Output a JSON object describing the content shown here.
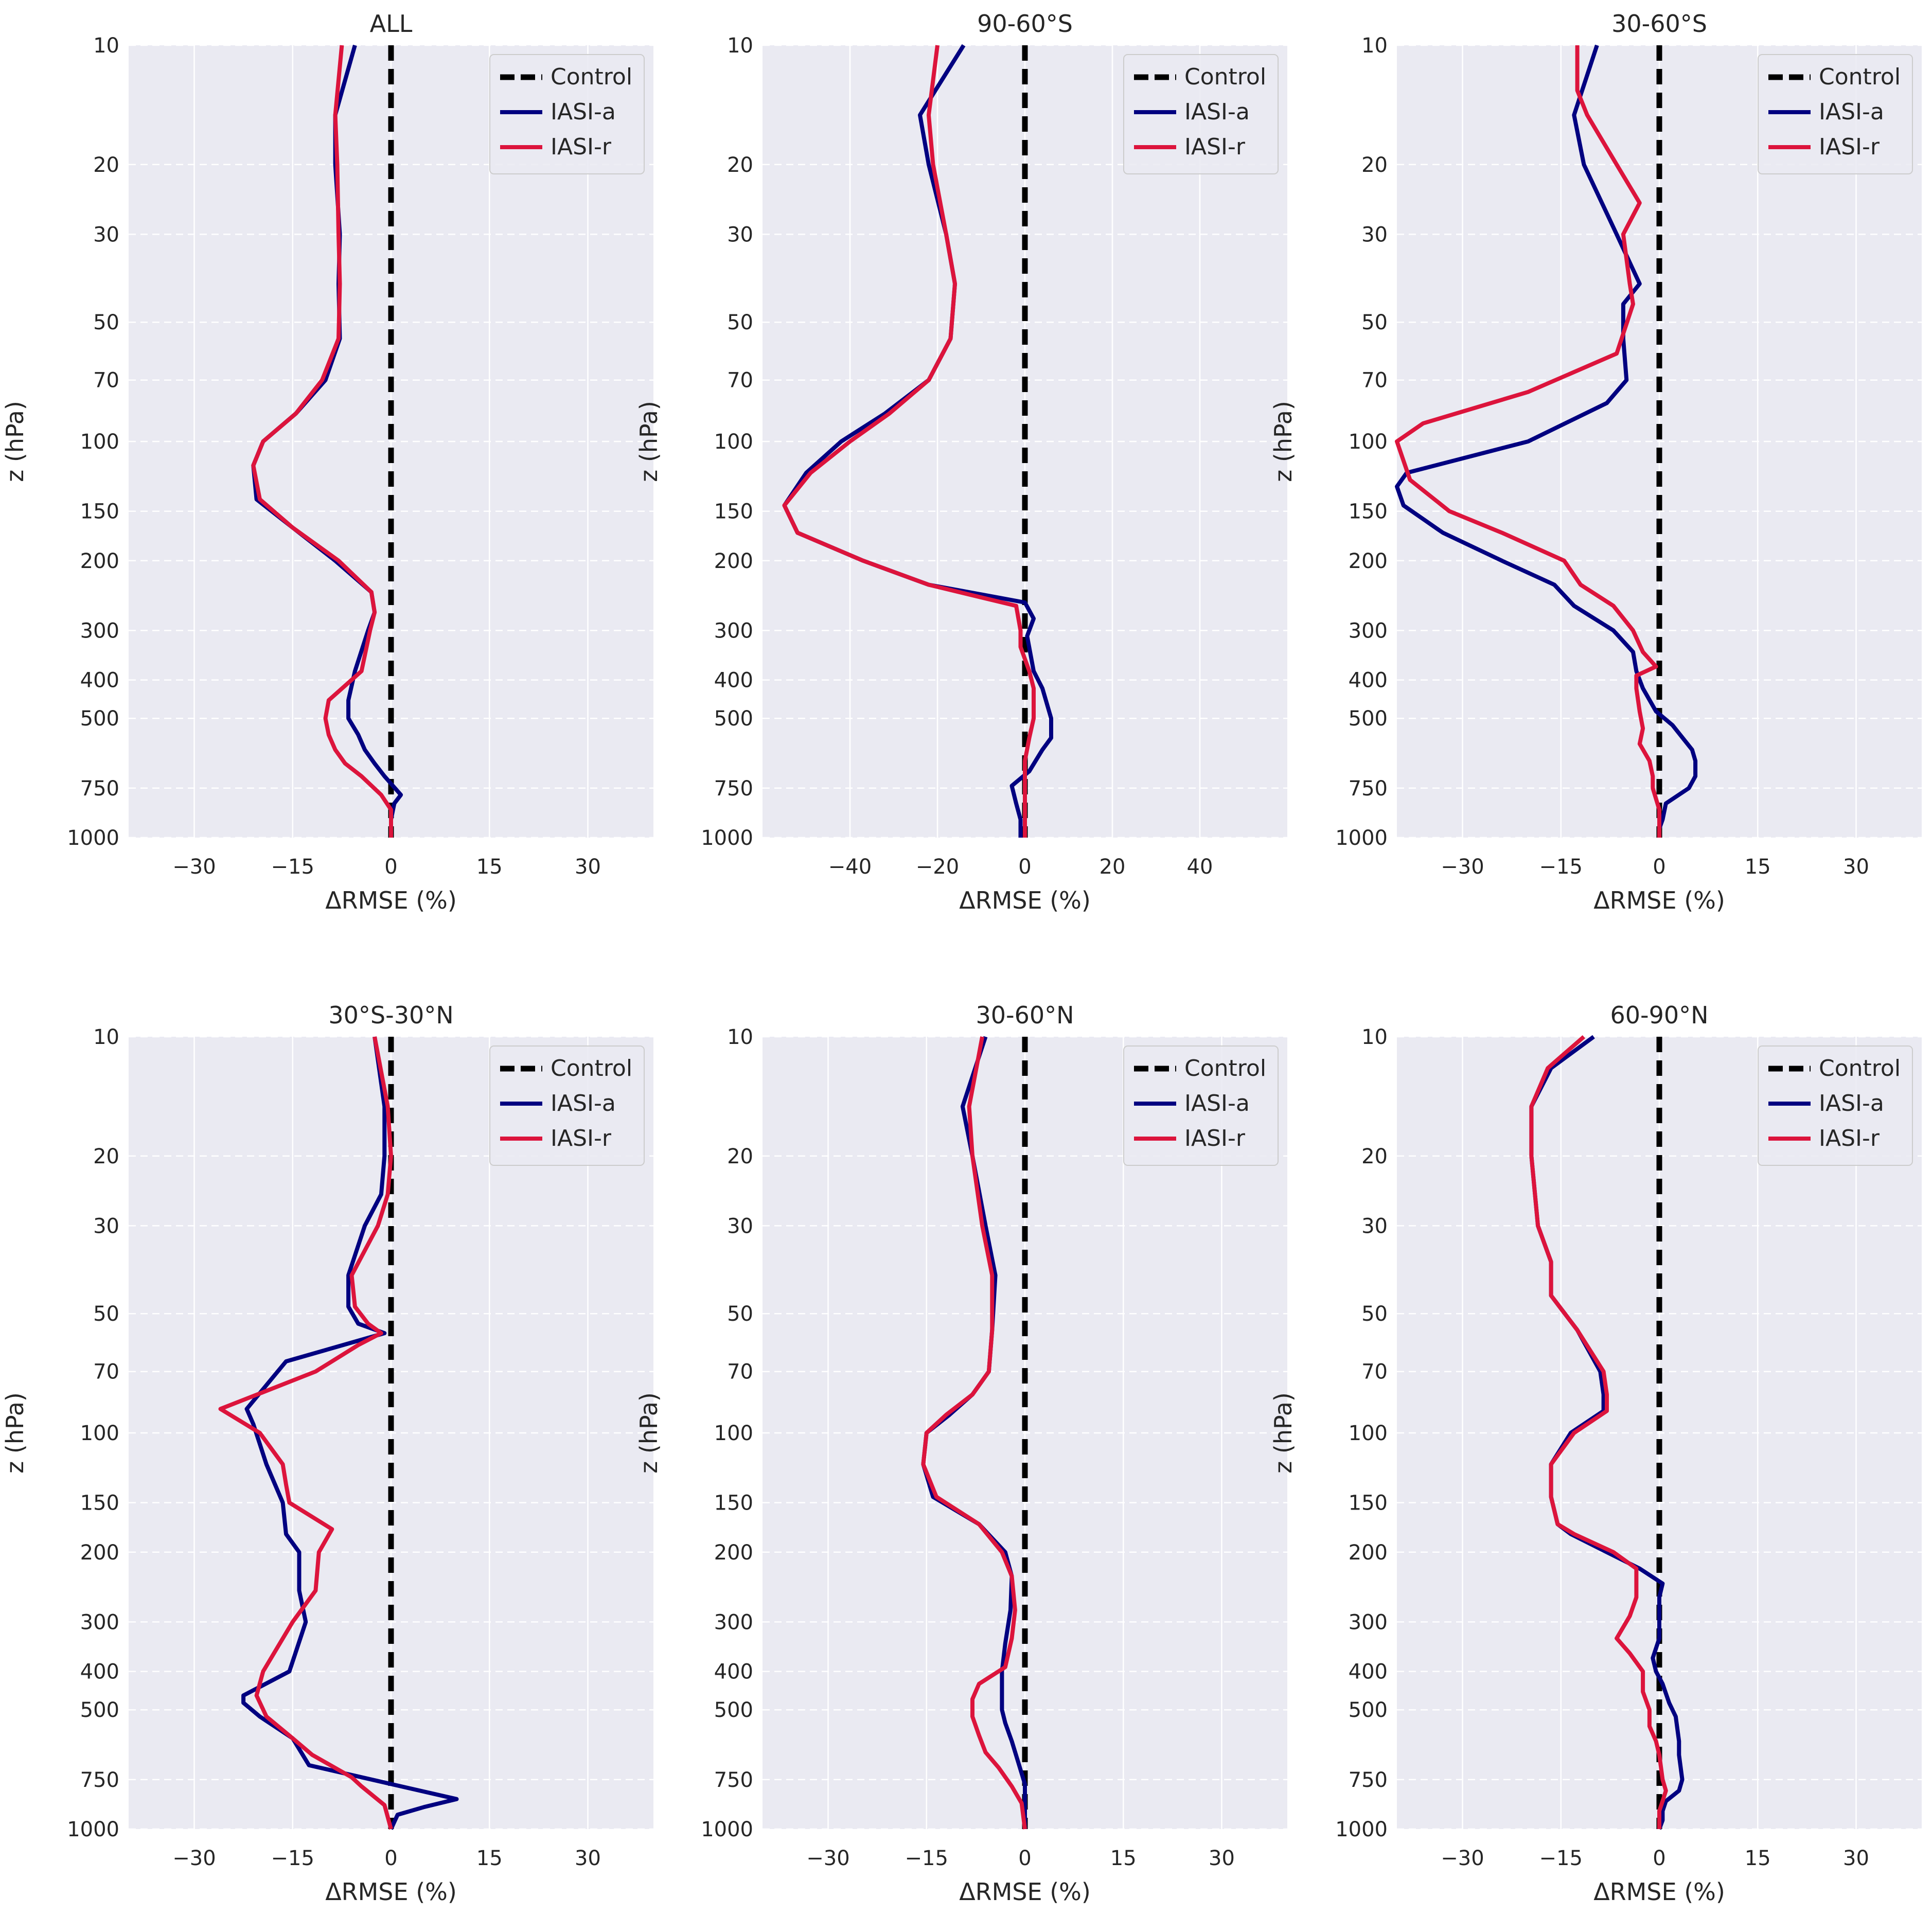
{
  "figure": {
    "colors": {
      "panel_bg": "#EAEAF2",
      "grid": "#FFFFFF",
      "control": "#000000",
      "iasi_a": "#000080",
      "iasi_r": "#DC143C",
      "legend_border": "#CCCCCC"
    }
  },
  "chart_data": [
    {
      "type": "line",
      "title": "ALL",
      "xlabel": "ΔRMSE (%)",
      "ylabel": "z (hPa)",
      "yscale": "log",
      "yinvert": true,
      "xlim": [
        -40,
        40
      ],
      "ylim": [
        10,
        1000
      ],
      "xticks": [
        -30,
        -15,
        0,
        15,
        30
      ],
      "yticks": [
        10,
        20,
        30,
        50,
        70,
        100,
        150,
        200,
        300,
        400,
        500,
        750,
        1000
      ],
      "legend_position": "top-right",
      "grid": true,
      "series": [
        {
          "name": "Control",
          "style": "dashed",
          "x": [
            0,
            0
          ],
          "y": [
            10,
            1000
          ]
        },
        {
          "name": "IASI-a",
          "style": "solid",
          "x": [
            -5.5,
            -8.5,
            -8.5,
            -7.8,
            -8,
            -7.8,
            -10,
            -14.5,
            -19.5,
            -21,
            -20.5,
            -15,
            -8.5,
            -3,
            -2.5,
            -3.5,
            -5.5,
            -6.5,
            -6.5,
            -5,
            -4,
            -2.5,
            -1,
            1.5,
            0.5,
            0,
            0
          ],
          "y": [
            10,
            15,
            20,
            30,
            40,
            55,
            70,
            85,
            100,
            115,
            140,
            165,
            200,
            240,
            270,
            300,
            380,
            450,
            500,
            550,
            600,
            650,
            700,
            780,
            820,
            900,
            1000
          ]
        },
        {
          "name": "IASI-r",
          "style": "solid",
          "x": [
            -7.5,
            -8.5,
            -8.2,
            -8,
            -7.8,
            -8,
            -10.5,
            -14.5,
            -19.5,
            -21,
            -20,
            -15,
            -8,
            -3,
            -2.5,
            -3.2,
            -4.5,
            -9.5,
            -10,
            -9.5,
            -8.5,
            -7,
            -4.5,
            -1.5,
            0,
            0
          ],
          "y": [
            10,
            15,
            20,
            30,
            40,
            55,
            70,
            85,
            100,
            115,
            140,
            165,
            200,
            240,
            270,
            300,
            380,
            450,
            500,
            550,
            600,
            650,
            700,
            780,
            850,
            1000
          ]
        }
      ]
    },
    {
      "type": "line",
      "title": "90-60°S",
      "xlabel": "ΔRMSE (%)",
      "ylabel": "z (hPa)",
      "yscale": "log",
      "yinvert": true,
      "xlim": [
        -60,
        60
      ],
      "ylim": [
        10,
        1000
      ],
      "xticks": [
        -40,
        -20,
        0,
        20,
        40
      ],
      "yticks": [
        10,
        20,
        30,
        50,
        70,
        100,
        150,
        200,
        300,
        400,
        500,
        750,
        1000
      ],
      "legend_position": "top-right",
      "grid": true,
      "series": [
        {
          "name": "Control",
          "style": "dashed",
          "x": [
            0,
            0
          ],
          "y": [
            10,
            1000
          ]
        },
        {
          "name": "IASI-a",
          "style": "solid",
          "x": [
            -14,
            -24,
            -22,
            -18,
            -16,
            -17,
            -22,
            -32,
            -42,
            -50,
            -55,
            -52,
            -37,
            -22,
            0,
            2,
            0.5,
            2,
            4,
            6,
            6,
            4,
            1,
            -3,
            -2,
            -1,
            -1
          ],
          "y": [
            10,
            15,
            20,
            30,
            40,
            55,
            70,
            85,
            100,
            120,
            145,
            170,
            200,
            230,
            255,
            280,
            310,
            380,
            420,
            500,
            560,
            600,
            680,
            740,
            820,
            900,
            1000
          ]
        },
        {
          "name": "IASI-r",
          "style": "solid",
          "x": [
            -20,
            -22,
            -21,
            -18,
            -16,
            -17,
            -22,
            -31,
            -40,
            -49,
            -55,
            -52,
            -37,
            -22,
            -2,
            -1,
            -1,
            1,
            2,
            2,
            1,
            0,
            0,
            0,
            0
          ],
          "y": [
            10,
            15,
            20,
            30,
            40,
            55,
            70,
            85,
            100,
            120,
            145,
            170,
            200,
            230,
            260,
            300,
            330,
            380,
            420,
            500,
            560,
            640,
            750,
            850,
            1000
          ]
        }
      ]
    },
    {
      "type": "line",
      "title": "30-60°S",
      "xlabel": "ΔRMSE (%)",
      "ylabel": "z (hPa)",
      "yscale": "log",
      "yinvert": true,
      "xlim": [
        -40,
        40
      ],
      "ylim": [
        10,
        1000
      ],
      "xticks": [
        -30,
        -15,
        0,
        15,
        30
      ],
      "yticks": [
        10,
        20,
        30,
        50,
        70,
        100,
        150,
        200,
        300,
        400,
        500,
        750,
        1000
      ],
      "legend_position": "top-right",
      "grid": true,
      "series": [
        {
          "name": "Control",
          "style": "dashed",
          "x": [
            0,
            0
          ],
          "y": [
            10,
            1000
          ]
        },
        {
          "name": "IASI-a",
          "style": "solid",
          "x": [
            -9.5,
            -13,
            -11.5,
            -6.5,
            -3,
            -5.5,
            -5.5,
            -5,
            -8,
            -20,
            -38.5,
            -40,
            -39,
            -33,
            -24,
            -16,
            -13,
            -7,
            -4,
            -3.5,
            -2.5,
            -0.5,
            2,
            5,
            5.5,
            5.5,
            4.5,
            1,
            0.5,
            0,
            0
          ],
          "y": [
            10,
            15,
            20,
            30,
            40,
            45,
            55,
            70,
            80,
            100,
            120,
            130,
            145,
            170,
            200,
            230,
            260,
            300,
            340,
            380,
            420,
            480,
            520,
            600,
            640,
            700,
            750,
            820,
            900,
            950,
            1000
          ]
        },
        {
          "name": "IASI-r",
          "style": "solid",
          "x": [
            -12.5,
            -12.5,
            -11,
            -6.5,
            -3,
            -5.5,
            -4.5,
            -4,
            -6.5,
            -20,
            -36,
            -40,
            -38,
            -32,
            -24,
            -14.5,
            -12,
            -7,
            -4,
            -2.5,
            -0.5,
            -3.5,
            -3.5,
            -3,
            -2.5,
            -3,
            -1.5,
            -1,
            -1,
            0,
            0,
            0
          ],
          "y": [
            10,
            13,
            15,
            20,
            25,
            30,
            40,
            45,
            60,
            75,
            90,
            100,
            125,
            150,
            170,
            200,
            230,
            260,
            300,
            340,
            370,
            390,
            420,
            480,
            530,
            580,
            640,
            700,
            750,
            850,
            900,
            1000
          ]
        }
      ]
    },
    {
      "type": "line",
      "title": "30°S-30°N",
      "xlabel": "ΔRMSE (%)",
      "ylabel": "z (hPa)",
      "yscale": "log",
      "yinvert": true,
      "xlim": [
        -40,
        40
      ],
      "ylim": [
        10,
        1000
      ],
      "xticks": [
        -30,
        -15,
        0,
        15,
        30
      ],
      "yticks": [
        10,
        20,
        30,
        50,
        70,
        100,
        150,
        200,
        300,
        400,
        500,
        750,
        1000
      ],
      "legend_position": "top-right",
      "grid": true,
      "series": [
        {
          "name": "Control",
          "style": "dashed",
          "x": [
            0,
            0
          ],
          "y": [
            10,
            1000
          ]
        },
        {
          "name": "IASI-a",
          "style": "solid",
          "x": [
            -2.5,
            -1,
            -1,
            -1.5,
            -4,
            -6.5,
            -6.5,
            -5,
            -1,
            -16,
            -22,
            -21,
            -19,
            -16.5,
            -16,
            -14,
            -14,
            -13,
            -15.5,
            -22.5,
            -22.5,
            -20,
            -15,
            -12.5,
            10,
            5,
            1,
            0
          ],
          "y": [
            10,
            15,
            20,
            25,
            30,
            40,
            48,
            53,
            56,
            66,
            87,
            95,
            120,
            150,
            180,
            200,
            250,
            300,
            400,
            460,
            480,
            520,
            590,
            690,
            840,
            880,
            920,
            1000
          ]
        },
        {
          "name": "IASI-r",
          "style": "solid",
          "x": [
            -2.5,
            -0.5,
            0,
            -0.5,
            -2,
            -6,
            -5.5,
            -3.5,
            -1.5,
            -5,
            -11.5,
            -26,
            -20,
            -16.5,
            -16,
            -15.5,
            -9,
            -11,
            -11.5,
            -15,
            -19.5,
            -20.5,
            -19,
            -15,
            -12,
            -6,
            -4.5,
            -1,
            0
          ],
          "y": [
            10,
            15,
            20,
            25,
            30,
            40,
            48,
            53,
            56,
            60,
            70,
            87,
            100,
            120,
            135,
            150,
            175,
            200,
            250,
            300,
            400,
            460,
            520,
            590,
            650,
            740,
            780,
            870,
            1000
          ]
        }
      ]
    },
    {
      "type": "line",
      "title": "30-60°N",
      "xlabel": "ΔRMSE (%)",
      "ylabel": "z (hPa)",
      "yscale": "log",
      "yinvert": true,
      "xlim": [
        -40,
        40
      ],
      "ylim": [
        10,
        1000
      ],
      "xticks": [
        -30,
        -15,
        0,
        15,
        30
      ],
      "yticks": [
        10,
        20,
        30,
        50,
        70,
        100,
        150,
        200,
        300,
        400,
        500,
        750,
        1000
      ],
      "legend_position": "top-right",
      "grid": true,
      "series": [
        {
          "name": "Control",
          "style": "dashed",
          "x": [
            0,
            0
          ],
          "y": [
            10,
            1000
          ]
        },
        {
          "name": "IASI-a",
          "style": "solid",
          "x": [
            -6,
            -9.5,
            -8,
            -6,
            -4.5,
            -5,
            -5.5,
            -8,
            -11.5,
            -15,
            -15.5,
            -14,
            -7,
            -3,
            -2,
            -2.2,
            -3,
            -3.5,
            -3.5,
            -3.5,
            -3,
            -2,
            -1,
            0,
            0
          ],
          "y": [
            10,
            15,
            20,
            30,
            40,
            55,
            70,
            80,
            90,
            100,
            120,
            145,
            170,
            200,
            230,
            280,
            340,
            400,
            440,
            500,
            540,
            600,
            680,
            770,
            1000
          ]
        },
        {
          "name": "IASI-r",
          "style": "solid",
          "x": [
            -6.5,
            -8.5,
            -8,
            -6.5,
            -5,
            -5,
            -5.5,
            -8,
            -12,
            -15,
            -15.5,
            -13.5,
            -7,
            -3.5,
            -2,
            -1.5,
            -2,
            -3,
            -7,
            -8,
            -8,
            -7,
            -6,
            -4,
            -2,
            -0.5,
            0
          ],
          "y": [
            10,
            15,
            20,
            30,
            40,
            55,
            70,
            80,
            90,
            100,
            120,
            145,
            170,
            200,
            230,
            280,
            330,
            390,
            430,
            470,
            520,
            580,
            640,
            700,
            780,
            860,
            1000
          ]
        }
      ]
    },
    {
      "type": "line",
      "title": "60-90°N",
      "xlabel": "ΔRMSE (%)",
      "ylabel": "z (hPa)",
      "yscale": "log",
      "yinvert": true,
      "xlim": [
        -40,
        40
      ],
      "ylim": [
        10,
        1000
      ],
      "xticks": [
        -30,
        -15,
        0,
        15,
        30
      ],
      "yticks": [
        10,
        20,
        30,
        50,
        70,
        100,
        150,
        200,
        300,
        400,
        500,
        750,
        1000
      ],
      "legend_position": "top-right",
      "grid": true,
      "series": [
        {
          "name": "Control",
          "style": "dashed",
          "x": [
            0,
            0
          ],
          "y": [
            10,
            1000
          ]
        },
        {
          "name": "IASI-a",
          "style": "solid",
          "x": [
            -10,
            -16.5,
            -19.5,
            -19.5,
            -18.5,
            -16.5,
            -16.5,
            -12.5,
            -9,
            -8.5,
            -8.5,
            -13.5,
            -16.5,
            -16.5,
            -15.5,
            -13.5,
            -8,
            -3,
            0.5,
            0,
            0,
            0,
            -1,
            -0.5,
            0.5,
            1.5,
            2.5,
            3,
            3,
            3.5,
            3,
            1,
            0.5,
            0.5,
            0
          ],
          "y": [
            10,
            12,
            15,
            20,
            30,
            37,
            45,
            55,
            70,
            80,
            88,
            100,
            120,
            145,
            170,
            180,
            200,
            220,
            240,
            260,
            290,
            330,
            370,
            400,
            430,
            480,
            520,
            600,
            650,
            750,
            800,
            850,
            900,
            950,
            1000
          ]
        },
        {
          "name": "IASI-r",
          "style": "solid",
          "x": [
            -11.5,
            -17,
            -19.5,
            -19.5,
            -18.5,
            -16.5,
            -16.5,
            -12.5,
            -8.5,
            -8,
            -8,
            -13,
            -16.5,
            -16.5,
            -15.5,
            -13,
            -7,
            -3.5,
            -3.5,
            -3.5,
            -4.5,
            -6.5,
            -4.5,
            -2.5,
            -2.5,
            -1.5,
            -1.5,
            -0.5,
            0,
            0.5,
            1,
            0.5,
            0,
            0
          ],
          "y": [
            10,
            12,
            15,
            20,
            30,
            37,
            45,
            55,
            70,
            80,
            88,
            100,
            120,
            145,
            170,
            180,
            200,
            220,
            240,
            260,
            290,
            330,
            360,
            400,
            450,
            500,
            550,
            600,
            650,
            750,
            800,
            850,
            900,
            1000
          ]
        }
      ]
    }
  ]
}
